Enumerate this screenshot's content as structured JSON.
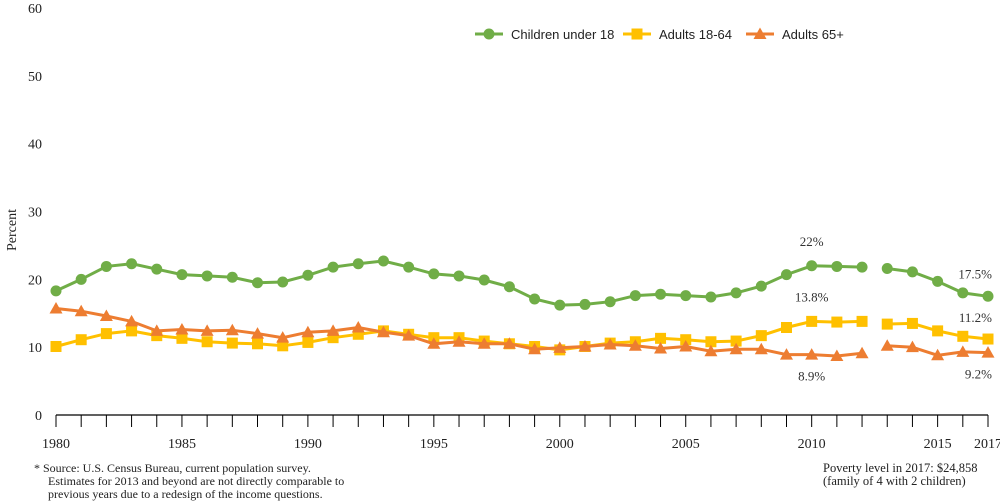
{
  "chart_data": {
    "type": "line",
    "title": "",
    "ylabel": "Percent",
    "xlabel": "",
    "xlim": [
      1980,
      2017
    ],
    "ylim": [
      0,
      60
    ],
    "yticks": [
      0,
      10,
      20,
      30,
      40,
      50,
      60
    ],
    "xtick_labels": [
      "1980",
      "1985",
      "1990",
      "1995",
      "2000",
      "2005",
      "2010",
      "2015",
      "2017"
    ],
    "legend_position": "top-right",
    "grid": false,
    "series": [
      {
        "name": "Children under 18",
        "color": "#70AD47",
        "marker": "circle",
        "points": [
          [
            1980,
            18.3
          ],
          [
            1981,
            20.0
          ],
          [
            1982,
            21.9
          ],
          [
            1983,
            22.3
          ],
          [
            1984,
            21.5
          ],
          [
            1985,
            20.7
          ],
          [
            1986,
            20.5
          ],
          [
            1987,
            20.3
          ],
          [
            1988,
            19.5
          ],
          [
            1989,
            19.6
          ],
          [
            1990,
            20.6
          ],
          [
            1991,
            21.8
          ],
          [
            1992,
            22.3
          ],
          [
            1993,
            22.7
          ],
          [
            1994,
            21.8
          ],
          [
            1995,
            20.8
          ],
          [
            1996,
            20.5
          ],
          [
            1997,
            19.9
          ],
          [
            1998,
            18.9
          ],
          [
            1999,
            17.1
          ],
          [
            2000,
            16.2
          ],
          [
            2001,
            16.3
          ],
          [
            2002,
            16.7
          ],
          [
            2003,
            17.6
          ],
          [
            2004,
            17.8
          ],
          [
            2005,
            17.6
          ],
          [
            2006,
            17.4
          ],
          [
            2007,
            18.0
          ],
          [
            2008,
            19.0
          ],
          [
            2009,
            20.7
          ],
          [
            2010,
            22.0
          ],
          [
            2011,
            21.9
          ],
          [
            2012,
            21.8
          ],
          [
            2013,
            21.6
          ],
          [
            2014,
            21.1
          ],
          [
            2015,
            19.7
          ],
          [
            2016,
            18.0
          ],
          [
            2017,
            17.5
          ]
        ]
      },
      {
        "name": "Adults 18-64",
        "color": "#FFC000",
        "marker": "square",
        "points": [
          [
            1980,
            10.1
          ],
          [
            1981,
            11.1
          ],
          [
            1982,
            12.0
          ],
          [
            1983,
            12.4
          ],
          [
            1984,
            11.7
          ],
          [
            1985,
            11.3
          ],
          [
            1986,
            10.8
          ],
          [
            1987,
            10.6
          ],
          [
            1988,
            10.5
          ],
          [
            1989,
            10.2
          ],
          [
            1990,
            10.7
          ],
          [
            1991,
            11.4
          ],
          [
            1992,
            11.9
          ],
          [
            1993,
            12.4
          ],
          [
            1994,
            11.9
          ],
          [
            1995,
            11.4
          ],
          [
            1996,
            11.4
          ],
          [
            1997,
            10.9
          ],
          [
            1998,
            10.5
          ],
          [
            1999,
            10.1
          ],
          [
            2000,
            9.6
          ],
          [
            2001,
            10.1
          ],
          [
            2002,
            10.6
          ],
          [
            2003,
            10.8
          ],
          [
            2004,
            11.3
          ],
          [
            2005,
            11.1
          ],
          [
            2006,
            10.8
          ],
          [
            2007,
            10.9
          ],
          [
            2008,
            11.7
          ],
          [
            2009,
            12.9
          ],
          [
            2010,
            13.8
          ],
          [
            2011,
            13.7
          ],
          [
            2012,
            13.8
          ],
          [
            2013,
            13.4
          ],
          [
            2014,
            13.5
          ],
          [
            2015,
            12.4
          ],
          [
            2016,
            11.6
          ],
          [
            2017,
            11.2
          ]
        ]
      },
      {
        "name": "Adults 65+",
        "color": "#ED7D31",
        "marker": "triangle",
        "points": [
          [
            1980,
            15.7
          ],
          [
            1981,
            15.3
          ],
          [
            1982,
            14.6
          ],
          [
            1983,
            13.8
          ],
          [
            1984,
            12.4
          ],
          [
            1985,
            12.6
          ],
          [
            1986,
            12.4
          ],
          [
            1987,
            12.5
          ],
          [
            1988,
            12.0
          ],
          [
            1989,
            11.4
          ],
          [
            1990,
            12.2
          ],
          [
            1991,
            12.4
          ],
          [
            1992,
            12.9
          ],
          [
            1993,
            12.2
          ],
          [
            1994,
            11.7
          ],
          [
            1995,
            10.5
          ],
          [
            1996,
            10.8
          ],
          [
            1997,
            10.5
          ],
          [
            1998,
            10.5
          ],
          [
            1999,
            9.7
          ],
          [
            2000,
            9.9
          ],
          [
            2001,
            10.1
          ],
          [
            2002,
            10.4
          ],
          [
            2003,
            10.2
          ],
          [
            2004,
            9.8
          ],
          [
            2005,
            10.1
          ],
          [
            2006,
            9.4
          ],
          [
            2007,
            9.7
          ],
          [
            2008,
            9.7
          ],
          [
            2009,
            8.9
          ],
          [
            2010,
            8.9
          ],
          [
            2011,
            8.7
          ],
          [
            2012,
            9.1
          ],
          [
            2013,
            10.2
          ],
          [
            2014,
            10.0
          ],
          [
            2015,
            8.8
          ],
          [
            2016,
            9.3
          ],
          [
            2017,
            9.2
          ]
        ]
      }
    ],
    "break_after_year": 2012,
    "annotations": [
      {
        "text": "22%",
        "x": 2010,
        "series": 0
      },
      {
        "text": "17.5%",
        "x": 2017,
        "series": 0
      },
      {
        "text": "13.8%",
        "x": 2010,
        "series": 1
      },
      {
        "text": "11.2%",
        "x": 2017,
        "series": 1
      },
      {
        "text": "8.9%",
        "x": 2010,
        "series": 2
      },
      {
        "text": "9.2%",
        "x": 2017,
        "series": 2
      }
    ]
  },
  "footnotes": {
    "source_lines": [
      "* Source: U.S. Census Bureau, current population survey.",
      "Estimates for 2013 and beyond are not directly comparable to",
      "previous years due to a redesign of the income questions."
    ],
    "poverty_lines": [
      "Poverty level in 2017: $24,858",
      "(family of 4 with 2 children)"
    ]
  }
}
